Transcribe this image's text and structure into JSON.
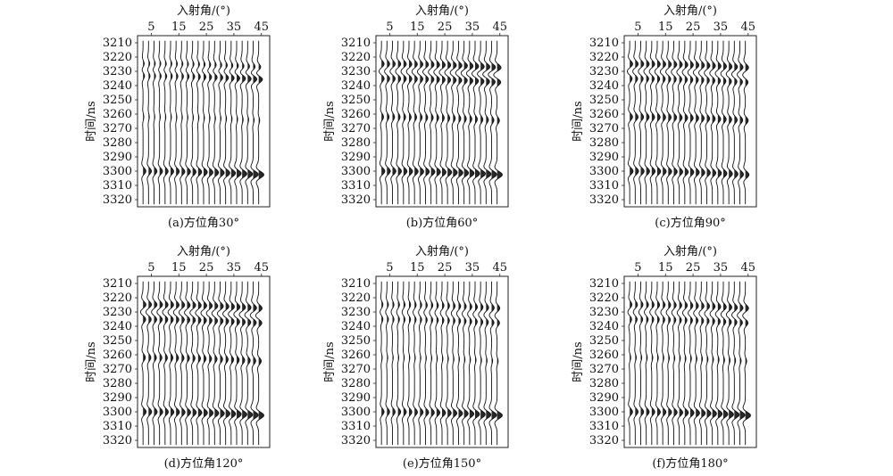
{
  "chart_data": [
    {
      "type": "seismic-gather",
      "caption": "(a)方位角30°",
      "xlabel": "入射角/(°)",
      "ylabel": "时间/ns",
      "x_ticks": [
        5,
        15,
        25,
        35,
        45
      ],
      "y_ticks": [
        3210,
        3220,
        3230,
        3240,
        3250,
        3260,
        3270,
        3280,
        3290,
        3300,
        3310,
        3320
      ],
      "ylim": [
        3205,
        3325
      ],
      "traces": {
        "first_angle": 2,
        "last_angle": 44,
        "step": 2
      },
      "events": [
        {
          "time": 3225,
          "amp_near": 0.3,
          "amp_far": 0.55
        },
        {
          "time": 3233,
          "amp_near": 0.35,
          "amp_far": 0.85
        },
        {
          "time": 3262,
          "amp_near": 0.15,
          "amp_far": 0.2
        },
        {
          "time": 3300,
          "amp_near": 0.55,
          "amp_far": 1.0
        }
      ]
    },
    {
      "type": "seismic-gather",
      "caption": "(b)方位角60°",
      "xlabel": "入射角/(°)",
      "ylabel": "时间/ns",
      "x_ticks": [
        5,
        15,
        25,
        35,
        45
      ],
      "y_ticks": [
        3210,
        3220,
        3230,
        3240,
        3250,
        3260,
        3270,
        3280,
        3290,
        3300,
        3310,
        3320
      ],
      "ylim": [
        3205,
        3325
      ],
      "traces": {
        "first_angle": 2,
        "last_angle": 44,
        "step": 2
      },
      "events": [
        {
          "time": 3225,
          "amp_near": 0.55,
          "amp_far": 0.8
        },
        {
          "time": 3235,
          "amp_near": 0.55,
          "amp_far": 0.75
        },
        {
          "time": 3262,
          "amp_near": 0.4,
          "amp_far": 0.45
        },
        {
          "time": 3300,
          "amp_near": 0.65,
          "amp_far": 1.0
        }
      ]
    },
    {
      "type": "seismic-gather",
      "caption": "(c)方位角90°",
      "xlabel": "入射角/(°)",
      "ylabel": "时间/ns",
      "x_ticks": [
        5,
        15,
        25,
        35,
        45
      ],
      "y_ticks": [
        3210,
        3220,
        3230,
        3240,
        3250,
        3260,
        3270,
        3280,
        3290,
        3300,
        3310,
        3320
      ],
      "ylim": [
        3205,
        3325
      ],
      "traces": {
        "first_angle": 2,
        "last_angle": 44,
        "step": 2
      },
      "events": [
        {
          "time": 3225,
          "amp_near": 0.6,
          "amp_far": 0.65
        },
        {
          "time": 3235,
          "amp_near": 0.5,
          "amp_far": 0.55
        },
        {
          "time": 3262,
          "amp_near": 0.55,
          "amp_far": 0.55
        },
        {
          "time": 3300,
          "amp_near": 0.65,
          "amp_far": 0.7
        }
      ]
    },
    {
      "type": "seismic-gather",
      "caption": "(d)方位角120°",
      "xlabel": "入射角/(°)",
      "ylabel": "时间/ns",
      "x_ticks": [
        5,
        15,
        25,
        35,
        45
      ],
      "y_ticks": [
        3210,
        3220,
        3230,
        3240,
        3250,
        3260,
        3270,
        3280,
        3290,
        3300,
        3310,
        3320
      ],
      "ylim": [
        3205,
        3325
      ],
      "traces": {
        "first_angle": 2,
        "last_angle": 44,
        "step": 2
      },
      "events": [
        {
          "time": 3225,
          "amp_near": 0.6,
          "amp_far": 0.7
        },
        {
          "time": 3235,
          "amp_near": 0.55,
          "amp_far": 0.65
        },
        {
          "time": 3262,
          "amp_near": 0.45,
          "amp_far": 0.5
        },
        {
          "time": 3300,
          "amp_near": 0.6,
          "amp_far": 1.0
        }
      ]
    },
    {
      "type": "seismic-gather",
      "caption": "(e)方位角150°",
      "xlabel": "入射角/(°)",
      "ylabel": "时间/ns",
      "x_ticks": [
        5,
        15,
        25,
        35,
        45
      ],
      "y_ticks": [
        3210,
        3220,
        3230,
        3240,
        3250,
        3260,
        3270,
        3280,
        3290,
        3300,
        3310,
        3320
      ],
      "ylim": [
        3205,
        3325
      ],
      "traces": {
        "first_angle": 2,
        "last_angle": 44,
        "step": 2
      },
      "events": [
        {
          "time": 3225,
          "amp_near": 0.3,
          "amp_far": 0.55
        },
        {
          "time": 3235,
          "amp_near": 0.3,
          "amp_far": 0.5
        },
        {
          "time": 3262,
          "amp_near": 0.15,
          "amp_far": 0.2
        },
        {
          "time": 3300,
          "amp_near": 0.5,
          "amp_far": 1.0
        }
      ]
    },
    {
      "type": "seismic-gather",
      "caption": "(f)方位角180°",
      "xlabel": "入射角/(°)",
      "ylabel": "时间/ns",
      "x_ticks": [
        5,
        15,
        25,
        35,
        45
      ],
      "y_ticks": [
        3210,
        3220,
        3230,
        3240,
        3250,
        3260,
        3270,
        3280,
        3290,
        3300,
        3310,
        3320
      ],
      "ylim": [
        3205,
        3325
      ],
      "traces": {
        "first_angle": 2,
        "last_angle": 44,
        "step": 2
      },
      "events": [
        {
          "time": 3225,
          "amp_near": 0.45,
          "amp_far": 0.65
        },
        {
          "time": 3235,
          "amp_near": 0.4,
          "amp_far": 0.55
        },
        {
          "time": 3262,
          "amp_near": 0.2,
          "amp_far": 0.25
        },
        {
          "time": 3300,
          "amp_near": 0.55,
          "amp_far": 1.0
        }
      ]
    }
  ],
  "colors": {
    "trace": "#111111",
    "axis": "#222222",
    "background": "#ffffff"
  }
}
